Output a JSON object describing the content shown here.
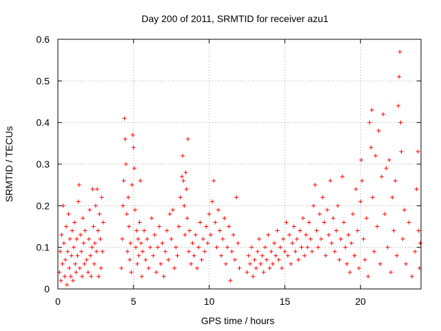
{
  "chart_data": {
    "type": "scatter",
    "title": "Day 200 of 2011, SRMTID for receiver azu1",
    "xlabel": "GPS time / hours",
    "ylabel": "SRMTID / TECUs",
    "xlim": [
      0,
      24
    ],
    "ylim": [
      0,
      0.6
    ],
    "xticks": [
      0,
      5,
      10,
      15,
      20
    ],
    "xtick_labels": [
      "0",
      "5",
      "10",
      "15",
      "20"
    ],
    "yticks": [
      0,
      0.1,
      0.2,
      0.3,
      0.4,
      0.5,
      0.6
    ],
    "ytick_labels": [
      "0",
      "0.1",
      "0.2",
      "0.3",
      "0.4",
      "0.5",
      "0.6"
    ],
    "grid": true,
    "marker": "+",
    "marker_color": "#ff0000",
    "series": [
      {
        "name": "SRMTID",
        "points": [
          [
            0.1,
            0.04
          ],
          [
            0.15,
            0.09
          ],
          [
            0.2,
            0.02
          ],
          [
            0.25,
            0.13
          ],
          [
            0.3,
            0.06
          ],
          [
            0.35,
            0.2
          ],
          [
            0.4,
            0.11
          ],
          [
            0.45,
            0.03
          ],
          [
            0.5,
            0.07
          ],
          [
            0.55,
            0.15
          ],
          [
            0.6,
            0.01
          ],
          [
            0.65,
            0.09
          ],
          [
            0.7,
            0.18
          ],
          [
            0.75,
            0.05
          ],
          [
            0.8,
            0.12
          ],
          [
            0.85,
            0.03
          ],
          [
            0.9,
            0.08
          ],
          [
            0.95,
            0.14
          ],
          [
            1.0,
            0.02
          ],
          [
            1.05,
            0.1
          ],
          [
            1.1,
            0.16
          ],
          [
            1.15,
            0.06
          ],
          [
            1.2,
            0.04
          ],
          [
            1.25,
            0.12
          ],
          [
            1.3,
            0.08
          ],
          [
            1.35,
            0.21
          ],
          [
            1.4,
            0.25
          ],
          [
            1.45,
            0.05
          ],
          [
            1.5,
            0.13
          ],
          [
            1.55,
            0.09
          ],
          [
            1.6,
            0.03
          ],
          [
            1.65,
            0.17
          ],
          [
            1.7,
            0.11
          ],
          [
            1.75,
            0.06
          ],
          [
            1.8,
            0.14
          ],
          [
            1.9,
            0.07
          ],
          [
            2.0,
            0.04
          ],
          [
            2.05,
            0.12
          ],
          [
            2.1,
            0.19
          ],
          [
            2.15,
            0.08
          ],
          [
            2.2,
            0.03
          ],
          [
            2.25,
            0.1
          ],
          [
            2.3,
            0.24
          ],
          [
            2.35,
            0.15
          ],
          [
            2.4,
            0.06
          ],
          [
            2.45,
            0.11
          ],
          [
            2.5,
            0.2
          ],
          [
            2.55,
            0.09
          ],
          [
            2.6,
            0.24
          ],
          [
            2.65,
            0.14
          ],
          [
            2.7,
            0.03
          ],
          [
            2.75,
            0.18
          ],
          [
            2.8,
            0.12
          ],
          [
            2.85,
            0.05
          ],
          [
            2.9,
            0.22
          ],
          [
            2.95,
            0.09
          ],
          [
            3.0,
            0.16
          ],
          [
            4.2,
            0.05
          ],
          [
            4.25,
            0.12
          ],
          [
            4.3,
            0.2
          ],
          [
            4.35,
            0.26
          ],
          [
            4.4,
            0.41
          ],
          [
            4.45,
            0.36
          ],
          [
            4.5,
            0.3
          ],
          [
            4.55,
            0.18
          ],
          [
            4.6,
            0.09
          ],
          [
            4.65,
            0.22
          ],
          [
            4.7,
            0.15
          ],
          [
            4.75,
            0.07
          ],
          [
            4.8,
            0.11
          ],
          [
            4.85,
            0.04
          ],
          [
            4.9,
            0.25
          ],
          [
            4.95,
            0.37
          ],
          [
            5.0,
            0.34
          ],
          [
            5.05,
            0.29
          ],
          [
            5.1,
            0.19
          ],
          [
            5.15,
            0.1
          ],
          [
            5.2,
            0.14
          ],
          [
            5.25,
            0.06
          ],
          [
            5.3,
            0.12
          ],
          [
            5.35,
            0.08
          ],
          [
            5.4,
            0.16
          ],
          [
            5.45,
            0.26
          ],
          [
            5.5,
            0.11
          ],
          [
            5.55,
            0.03
          ],
          [
            5.6,
            0.09
          ],
          [
            5.7,
            0.14
          ],
          [
            5.8,
            0.07
          ],
          [
            5.9,
            0.12
          ],
          [
            6.0,
            0.05
          ],
          [
            6.1,
            0.1
          ],
          [
            6.2,
            0.17
          ],
          [
            6.3,
            0.08
          ],
          [
            6.4,
            0.13
          ],
          [
            6.5,
            0.04
          ],
          [
            6.6,
            0.1
          ],
          [
            6.7,
            0.15
          ],
          [
            6.8,
            0.06
          ],
          [
            6.9,
            0.11
          ],
          [
            7.0,
            0.03
          ],
          [
            7.1,
            0.09
          ],
          [
            7.2,
            0.14
          ],
          [
            7.3,
            0.07
          ],
          [
            7.4,
            0.18
          ],
          [
            7.5,
            0.12
          ],
          [
            7.6,
            0.19
          ],
          [
            7.7,
            0.05
          ],
          [
            7.8,
            0.1
          ],
          [
            7.9,
            0.08
          ],
          [
            8.0,
            0.15
          ],
          [
            8.1,
            0.22
          ],
          [
            8.2,
            0.27
          ],
          [
            8.25,
            0.32
          ],
          [
            8.3,
            0.26
          ],
          [
            8.35,
            0.2
          ],
          [
            8.4,
            0.13
          ],
          [
            8.45,
            0.28
          ],
          [
            8.5,
            0.24
          ],
          [
            8.55,
            0.17
          ],
          [
            8.6,
            0.36
          ],
          [
            8.65,
            0.09
          ],
          [
            8.7,
            0.14
          ],
          [
            8.8,
            0.06
          ],
          [
            8.9,
            0.11
          ],
          [
            9.0,
            0.08
          ],
          [
            9.1,
            0.13
          ],
          [
            9.2,
            0.05
          ],
          [
            9.3,
            0.1
          ],
          [
            9.4,
            0.16
          ],
          [
            9.5,
            0.07
          ],
          [
            9.6,
            0.12
          ],
          [
            9.7,
            0.09
          ],
          [
            9.8,
            0.15
          ],
          [
            9.9,
            0.11
          ],
          [
            10.0,
            0.18
          ],
          [
            10.1,
            0.13
          ],
          [
            10.2,
            0.21
          ],
          [
            10.3,
            0.26
          ],
          [
            10.4,
            0.16
          ],
          [
            10.5,
            0.1
          ],
          [
            10.6,
            0.19
          ],
          [
            10.7,
            0.14
          ],
          [
            10.8,
            0.08
          ],
          [
            10.9,
            0.12
          ],
          [
            11.0,
            0.17
          ],
          [
            11.1,
            0.06
          ],
          [
            11.2,
            0.1
          ],
          [
            11.3,
            0.15
          ],
          [
            11.4,
            0.02
          ],
          [
            11.5,
            0.09
          ],
          [
            11.6,
            0.13
          ],
          [
            11.7,
            0.07
          ],
          [
            11.8,
            0.22
          ],
          [
            11.9,
            0.11
          ],
          [
            12.0,
            0.05
          ],
          [
            12.5,
            0.04
          ],
          [
            12.6,
            0.08
          ],
          [
            12.7,
            0.06
          ],
          [
            12.8,
            0.1
          ],
          [
            12.9,
            0.03
          ],
          [
            13.0,
            0.07
          ],
          [
            13.1,
            0.05
          ],
          [
            13.2,
            0.09
          ],
          [
            13.3,
            0.12
          ],
          [
            13.4,
            0.06
          ],
          [
            13.5,
            0.08
          ],
          [
            13.6,
            0.04
          ],
          [
            13.7,
            0.1
          ],
          [
            13.8,
            0.07
          ],
          [
            13.9,
            0.13
          ],
          [
            14.0,
            0.05
          ],
          [
            14.1,
            0.09
          ],
          [
            14.2,
            0.06
          ],
          [
            14.3,
            0.11
          ],
          [
            14.4,
            0.08
          ],
          [
            14.5,
            0.14
          ],
          [
            14.6,
            0.07
          ],
          [
            14.7,
            0.1
          ],
          [
            14.8,
            0.05
          ],
          [
            14.9,
            0.12
          ],
          [
            15.0,
            0.09
          ],
          [
            15.1,
            0.16
          ],
          [
            15.2,
            0.08
          ],
          [
            15.3,
            0.13
          ],
          [
            15.4,
            0.06
          ],
          [
            15.5,
            0.11
          ],
          [
            15.6,
            0.15
          ],
          [
            15.7,
            0.09
          ],
          [
            15.8,
            0.12
          ],
          [
            15.9,
            0.07
          ],
          [
            16.0,
            0.14
          ],
          [
            16.1,
            0.1
          ],
          [
            16.2,
            0.17
          ],
          [
            16.3,
            0.08
          ],
          [
            16.4,
            0.13
          ],
          [
            16.5,
            0.1
          ],
          [
            16.6,
            0.16
          ],
          [
            16.7,
            0.12
          ],
          [
            16.8,
            0.09
          ],
          [
            16.9,
            0.2
          ],
          [
            17.0,
            0.25
          ],
          [
            17.1,
            0.14
          ],
          [
            17.2,
            0.1
          ],
          [
            17.3,
            0.18
          ],
          [
            17.4,
            0.12
          ],
          [
            17.5,
            0.22
          ],
          [
            17.6,
            0.16
          ],
          [
            17.7,
            0.08
          ],
          [
            17.8,
            0.19
          ],
          [
            17.9,
            0.13
          ],
          [
            18.0,
            0.26
          ],
          [
            18.1,
            0.11
          ],
          [
            18.2,
            0.17
          ],
          [
            18.3,
            0.09
          ],
          [
            18.4,
            0.14
          ],
          [
            18.5,
            0.2
          ],
          [
            18.6,
            0.07
          ],
          [
            18.7,
            0.12
          ],
          [
            18.8,
            0.27
          ],
          [
            18.9,
            0.16
          ],
          [
            19.0,
            0.1
          ],
          [
            19.1,
            0.06
          ],
          [
            19.2,
            0.13
          ],
          [
            19.3,
            0.04
          ],
          [
            19.4,
            0.11
          ],
          [
            19.5,
            0.18
          ],
          [
            19.6,
            0.08
          ],
          [
            19.7,
            0.24
          ],
          [
            19.8,
            0.14
          ],
          [
            19.9,
            0.05
          ],
          [
            20.0,
            0.21
          ],
          [
            20.05,
            0.31
          ],
          [
            20.1,
            0.26
          ],
          [
            20.2,
            0.12
          ],
          [
            20.3,
            0.07
          ],
          [
            20.4,
            0.17
          ],
          [
            20.5,
            0.03
          ],
          [
            20.6,
            0.4
          ],
          [
            20.7,
            0.34
          ],
          [
            20.75,
            0.43
          ],
          [
            20.8,
            0.22
          ],
          [
            20.9,
            0.09
          ],
          [
            21.0,
            0.32
          ],
          [
            21.1,
            0.15
          ],
          [
            21.2,
            0.38
          ],
          [
            21.3,
            0.06
          ],
          [
            21.4,
            0.27
          ],
          [
            21.5,
            0.42
          ],
          [
            21.6,
            0.18
          ],
          [
            21.7,
            0.29
          ],
          [
            21.8,
            0.1
          ],
          [
            21.9,
            0.31
          ],
          [
            22.0,
            0.04
          ],
          [
            22.1,
            0.22
          ],
          [
            22.2,
            0.14
          ],
          [
            22.3,
            0.26
          ],
          [
            22.4,
            0.08
          ],
          [
            22.5,
            0.44
          ],
          [
            22.55,
            0.51
          ],
          [
            22.6,
            0.57
          ],
          [
            22.65,
            0.4
          ],
          [
            22.7,
            0.33
          ],
          [
            22.8,
            0.12
          ],
          [
            22.9,
            0.19
          ],
          [
            23.0,
            0.06
          ],
          [
            23.2,
            0.16
          ],
          [
            23.4,
            0.03
          ],
          [
            23.6,
            0.09
          ],
          [
            23.7,
            0.24
          ],
          [
            23.8,
            0.33
          ],
          [
            23.85,
            0.14
          ],
          [
            23.9,
            0.05
          ],
          [
            23.95,
            0.11
          ]
        ]
      }
    ]
  }
}
